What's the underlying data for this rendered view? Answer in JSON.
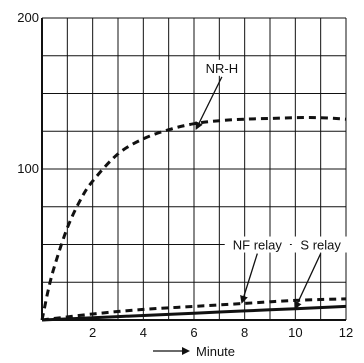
{
  "chart_data": {
    "type": "line",
    "title": "",
    "xlabel": "Minute",
    "ylabel": "",
    "xlim": [
      0,
      12
    ],
    "ylim": [
      0,
      200
    ],
    "grid": true,
    "x_ticks": [
      {
        "value": 2,
        "label": "2"
      },
      {
        "value": 4,
        "label": "4"
      },
      {
        "value": 6,
        "label": "6"
      },
      {
        "value": 8,
        "label": "8"
      },
      {
        "value": 10,
        "label": "10"
      },
      {
        "value": 12,
        "label": "12"
      }
    ],
    "y_ticks": [
      {
        "value": 100,
        "label": "100"
      },
      {
        "value": 200,
        "label": "200"
      }
    ],
    "series": [
      {
        "name": "NR-H",
        "style": "dashed",
        "x": [
          0,
          0.25,
          0.5,
          1,
          1.5,
          2,
          3,
          4,
          5,
          6,
          7,
          8,
          9,
          10,
          11,
          12
        ],
        "y": [
          0,
          20,
          36,
          61,
          79,
          92,
          110,
          120,
          126,
          130,
          132,
          133,
          133.5,
          134,
          134,
          133
        ]
      },
      {
        "name": "NF relay",
        "style": "dashed",
        "x": [
          0,
          2,
          4,
          6,
          8,
          10,
          12
        ],
        "y": [
          0,
          4,
          7,
          9,
          11,
          13,
          14
        ]
      },
      {
        "name": "S relay",
        "style": "solid",
        "x": [
          0,
          2,
          4,
          6,
          8,
          10,
          12
        ],
        "y": [
          0,
          1.5,
          3,
          4.5,
          6,
          7.5,
          9
        ]
      }
    ],
    "annotations": [
      {
        "text": "NR-H",
        "series": "NR-H",
        "label_at": [
          7.1,
          165
        ],
        "arrow_to": [
          6.1,
          127
        ]
      },
      {
        "text": "NF relay",
        "series": "NF relay",
        "label_at": [
          8.5,
          48
        ],
        "arrow_to": [
          7.9,
          12
        ]
      },
      {
        "text": "S relay",
        "series": "S relay",
        "label_at": [
          11.0,
          48
        ],
        "arrow_to": [
          10.0,
          8
        ]
      }
    ],
    "colors": {
      "lines": "#111111",
      "grid": "#111111",
      "background": "#ffffff"
    }
  }
}
